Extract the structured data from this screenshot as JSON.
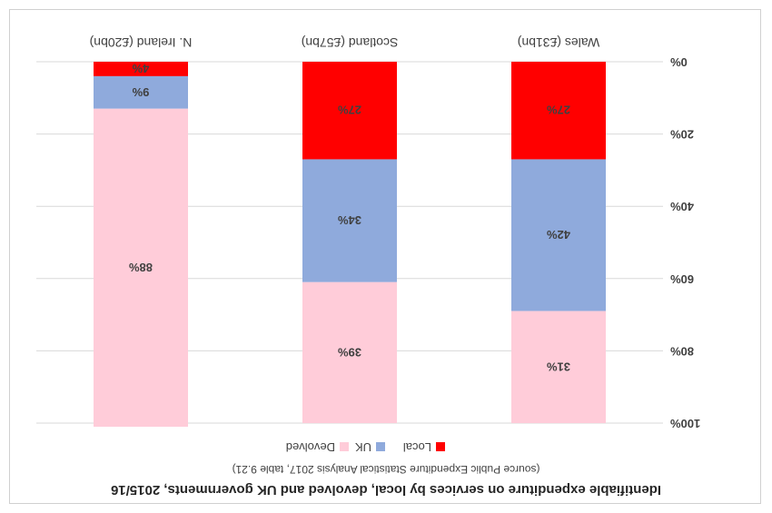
{
  "chart_data": {
    "type": "bar",
    "stacked": true,
    "orientation": "vertical",
    "rendered_upside_down": true,
    "title": "Identifiable expenditure on services by local, devolved and UK governments, 2015/16",
    "subtitle": "(source Public Expenditure Statistical Analysis 2017, table 9.21)",
    "categories": [
      "Wales (£31bn)",
      "Scotland (£57bn)",
      "N. Ireland (£20bn)"
    ],
    "series": [
      {
        "name": "Local",
        "color": "#ff0000",
        "values": [
          27,
          27,
          4
        ]
      },
      {
        "name": "UK",
        "color": "#8faadc",
        "values": [
          42,
          34,
          9
        ]
      },
      {
        "name": "Devolved",
        "color": "#ffccd9",
        "values": [
          31,
          39,
          88
        ]
      }
    ],
    "data_labels": [
      [
        "27%",
        "27%",
        "4%"
      ],
      [
        "42%",
        "34%",
        "9%"
      ],
      [
        "31%",
        "39%",
        "88%"
      ]
    ],
    "y_ticks": [
      "0%",
      "20%",
      "40%",
      "60%",
      "80%",
      "100%"
    ],
    "ylim": [
      0,
      100
    ],
    "grid": true,
    "legend_position": "bottom",
    "legend_order": [
      "Local",
      "UK",
      "Devolved"
    ]
  }
}
